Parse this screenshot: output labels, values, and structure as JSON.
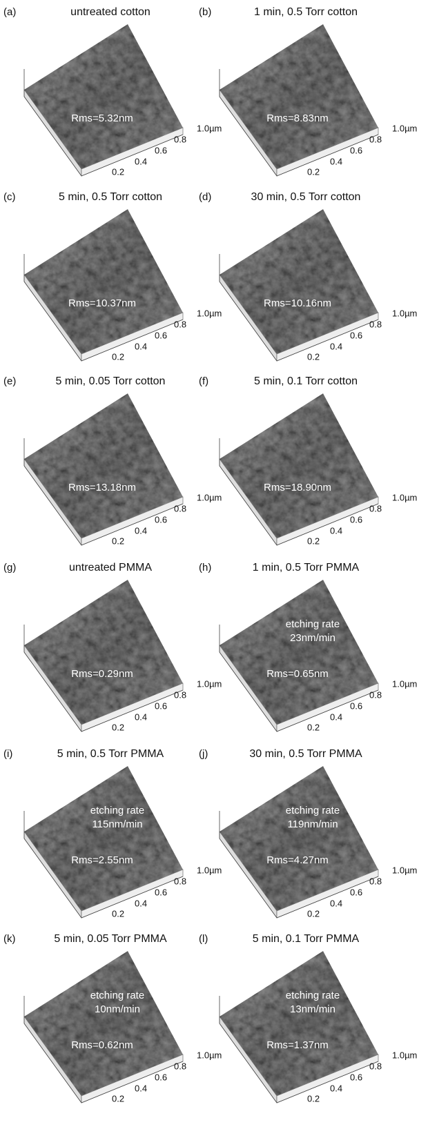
{
  "panels": [
    {
      "label": "(a)",
      "title": "untreated cotton",
      "rms": "Rms=5.32nm"
    },
    {
      "label": "(b)",
      "title": "1 min, 0.5 Torr cotton",
      "rms": "Rms=8.83nm"
    },
    {
      "label": "(c)",
      "title": "5 min, 0.5 Torr cotton",
      "rms": "Rms=10.37nm"
    },
    {
      "label": "(d)",
      "title": "30 min, 0.5 Torr cotton",
      "rms": "Rms=10.16nm"
    },
    {
      "label": "(e)",
      "title": "5 min, 0.05 Torr cotton",
      "rms": "Rms=13.18nm"
    },
    {
      "label": "(f)",
      "title": "5 min, 0.1 Torr cotton",
      "rms": "Rms=18.90nm"
    },
    {
      "label": "(g)",
      "title": "untreated PMMA",
      "rms": "Rms=0.29nm"
    },
    {
      "label": "(h)",
      "title": "1 min, 0.5 Torr PMMA",
      "etching": [
        "etching rate",
        "23nm/min"
      ],
      "rms": "Rms=0.65nm"
    },
    {
      "label": "(i)",
      "title": "5 min, 0.5 Torr PMMA",
      "etching": [
        "etching rate",
        "115nm/min"
      ],
      "rms": "Rms=2.55nm"
    },
    {
      "label": "(j)",
      "title": "30 min, 0.5 Torr PMMA",
      "etching": [
        "etching rate",
        "119nm/min"
      ],
      "rms": "Rms=4.27nm"
    },
    {
      "label": "(k)",
      "title": "5 min, 0.05 Torr PMMA",
      "etching": [
        "etching rate",
        "10nm/min"
      ],
      "rms": "Rms=0.62nm"
    },
    {
      "label": "(l)",
      "title": "5 min, 0.1 Torr PMMA",
      "etching": [
        "etching rate",
        "13nm/min"
      ],
      "rms": "Rms=1.37nm"
    }
  ],
  "axis_labels": [
    "0.2",
    "0.4",
    "0.6",
    "0.8",
    "1.0µm"
  ]
}
